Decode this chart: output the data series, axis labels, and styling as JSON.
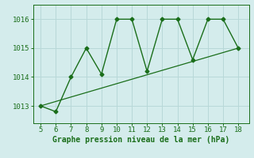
{
  "x": [
    5,
    6,
    7,
    8,
    9,
    10,
    11,
    12,
    13,
    14,
    15,
    16,
    17,
    18
  ],
  "y": [
    1013.0,
    1012.8,
    1014.0,
    1015.0,
    1014.1,
    1016.0,
    1016.0,
    1014.2,
    1016.0,
    1016.0,
    1014.6,
    1016.0,
    1016.0,
    1015.0
  ],
  "trend_x": [
    5,
    18
  ],
  "trend_y": [
    1013.0,
    1015.0
  ],
  "line_color": "#1a6e1a",
  "bg_color": "#d4ecec",
  "grid_color": "#b8d8d8",
  "xlabel": "Graphe pression niveau de la mer (hPa)",
  "ylim": [
    1012.4,
    1016.5
  ],
  "xlim": [
    4.5,
    18.7
  ],
  "yticks": [
    1013,
    1014,
    1015,
    1016
  ],
  "xticks": [
    5,
    6,
    7,
    8,
    9,
    10,
    11,
    12,
    13,
    14,
    15,
    16,
    17,
    18
  ],
  "tick_fontsize": 6.5,
  "xlabel_fontsize": 7.0
}
